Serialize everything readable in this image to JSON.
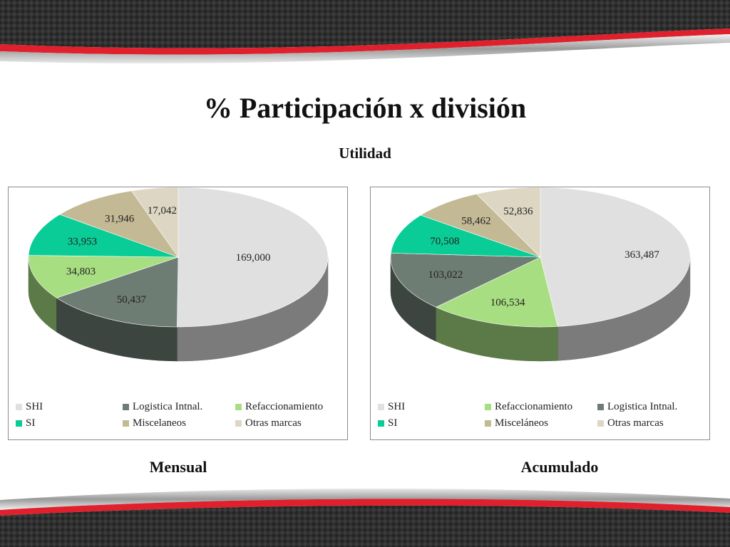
{
  "page": {
    "title": "% Participación x división",
    "subtitle": "Utilidad",
    "captions": [
      "Mensual",
      "Acumulado"
    ]
  },
  "colors": {
    "SHI": "#e0e0e0",
    "Logistica": "#6e7d74",
    "Refaccionamiento": "#a8de82",
    "SI": "#09cc96",
    "Miscelaneos": "#c3b995",
    "Otras": "#ddd6c2",
    "band_red": "#e0202c",
    "band_dark": "#2a2a2a"
  },
  "chart_data": [
    {
      "type": "pie",
      "title": "",
      "legend_position": "bottom",
      "slices": [
        {
          "name": "SHI",
          "value": 169000,
          "label": "169,000",
          "color": "#e0e0e0"
        },
        {
          "name": "Logistica Intnal.",
          "value": 50437,
          "label": "50,437",
          "color": "#6e7d74"
        },
        {
          "name": "Refaccionamiento",
          "value": 34803,
          "label": "34,803",
          "color": "#a8de82"
        },
        {
          "name": "SI",
          "value": 33953,
          "label": "33,953",
          "color": "#09cc96"
        },
        {
          "name": "Miscelaneos",
          "value": 31946,
          "label": "31,946",
          "color": "#c3b995"
        },
        {
          "name": "Otras marcas",
          "value": 17042,
          "label": "17,042",
          "color": "#ddd6c2"
        }
      ],
      "legend_order": [
        "SHI",
        "Logistica Intnal.",
        "Refaccionamiento",
        "SI",
        "Miscelaneos",
        "Otras marcas"
      ]
    },
    {
      "type": "pie",
      "title": "",
      "legend_position": "bottom",
      "slices": [
        {
          "name": "SHI",
          "value": 363487,
          "label": "363,487",
          "color": "#e0e0e0"
        },
        {
          "name": "Refaccionamiento",
          "value": 106534,
          "label": "106,534",
          "color": "#a8de82"
        },
        {
          "name": "Logistica Intnal.",
          "value": 103022,
          "label": "103,022",
          "color": "#6e7d74"
        },
        {
          "name": "SI",
          "value": 70508,
          "label": "70,508",
          "color": "#09cc96"
        },
        {
          "name": "Misceláneos",
          "value": 58462,
          "label": "58,462",
          "color": "#c3b995"
        },
        {
          "name": "Otras marcas",
          "value": 52836,
          "label": "52,836",
          "color": "#ddd6c2"
        }
      ],
      "legend_order": [
        "SHI",
        "Refaccionamiento",
        "Logistica Intnal.",
        "SI",
        "Misceláneos",
        "Otras marcas"
      ]
    }
  ]
}
